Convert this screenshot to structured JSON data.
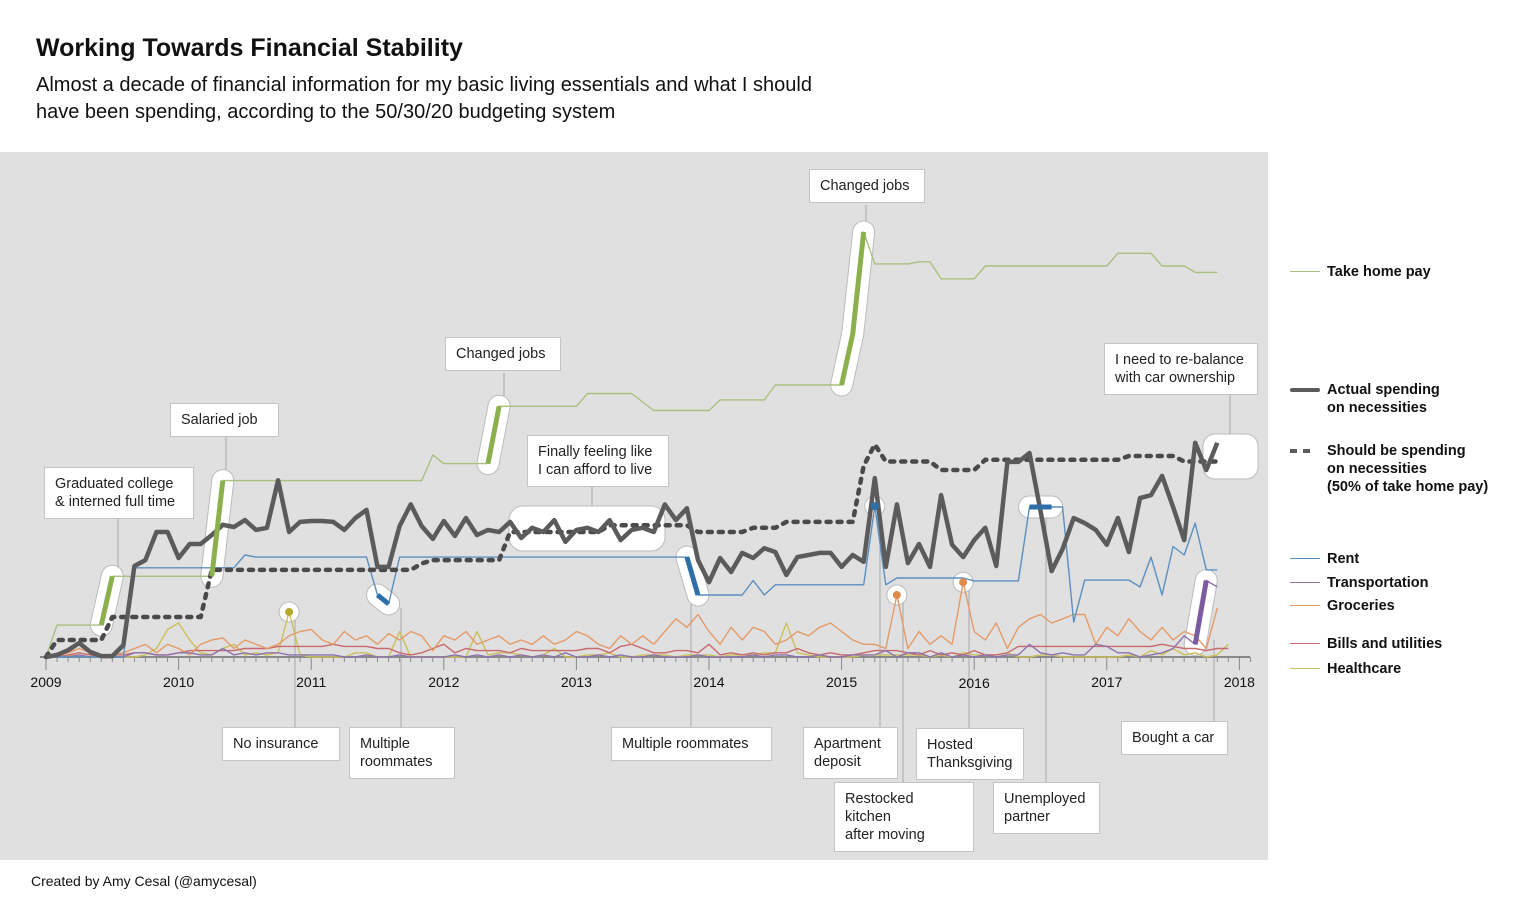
{
  "title": "Working Towards Financial Stability",
  "subtitle": "Almost a decade of financial information for my basic living essentials and what I should have been spending, according to the 50/30/20 budgeting system",
  "footer": "Created by Amy Cesal (@amycesal)",
  "chart_data": {
    "type": "line",
    "x_start": "2009-01",
    "x_interval": "month",
    "x_tick_labels": [
      "2009",
      "2010",
      "2011",
      "2012",
      "2013",
      "2014",
      "2015",
      "2016",
      "2017",
      "2018"
    ],
    "y_axis_shown": false,
    "grid": false,
    "legend_position": "right",
    "series": [
      {
        "name": "Take home pay",
        "color": "#a9c07f",
        "style": "solid-thin",
        "values": [
          0,
          7.5,
          7.5,
          7.5,
          7.5,
          7.5,
          19,
          19,
          19,
          19,
          19,
          19,
          19,
          19,
          19,
          19,
          41.5,
          41.5,
          41.5,
          41.5,
          41.5,
          41.5,
          41.5,
          41.5,
          41.5,
          41.5,
          41.5,
          41.5,
          41.5,
          41.5,
          41.5,
          41.5,
          41.5,
          41.5,
          41.5,
          47.5,
          45.5,
          45.5,
          45.5,
          45.5,
          45.5,
          59,
          59,
          59,
          59,
          59,
          59,
          59,
          59,
          62,
          62,
          62,
          62,
          62,
          60,
          58,
          58,
          58,
          58,
          58,
          58,
          60.5,
          60.5,
          60.5,
          60.5,
          60.5,
          64,
          64,
          64,
          64,
          64,
          64,
          64,
          76,
          100,
          92.5,
          92.5,
          92.5,
          92.5,
          93,
          93,
          89,
          89,
          89,
          89,
          92,
          92,
          92,
          92,
          92,
          92,
          92,
          92,
          92,
          92,
          92,
          92,
          95,
          95,
          95,
          95,
          92,
          92,
          92,
          90.5,
          90.5,
          90.5
        ]
      },
      {
        "name": "Actual spending on necessities",
        "color": "#5b5b5b",
        "style": "solid-thick",
        "values": [
          0,
          0.5,
          1.6,
          3.3,
          1.2,
          0.2,
          0.2,
          2.8,
          21.4,
          22.8,
          29.4,
          29.4,
          23.3,
          26.6,
          26.6,
          28.7,
          31.1,
          30.6,
          32.2,
          29.9,
          30.4,
          41.6,
          29.4,
          31.8,
          32,
          32,
          31.8,
          29.9,
          32.7,
          34.6,
          21.2,
          21.2,
          30.8,
          35.9,
          30.8,
          27.8,
          32,
          28.5,
          32.7,
          28.7,
          29.9,
          29.4,
          31.8,
          28,
          30.4,
          29.4,
          32.2,
          27.1,
          29.9,
          30.4,
          29.4,
          32.2,
          27.5,
          29.9,
          30.4,
          29.4,
          35.9,
          32.2,
          35,
          22.8,
          17.6,
          23.3,
          20,
          24.5,
          23.3,
          25.6,
          24.7,
          19.3,
          23.5,
          24,
          24.5,
          24.5,
          21.2,
          24,
          22.4,
          42.1,
          21.2,
          35.9,
          22.1,
          26.6,
          21.2,
          38.1,
          26.4,
          23.5,
          27.5,
          30.4,
          21.4,
          45.9,
          45.9,
          48,
          34.4,
          20.2,
          25.4,
          32.7,
          31.5,
          29.9,
          26.4,
          32.7,
          24.7,
          37.4,
          38.1,
          42.6,
          35.3,
          27.5,
          50.4,
          44,
          50.4
        ]
      },
      {
        "name": "Should be spending on necessities (50% of take home pay)",
        "color": "#4a4a4a",
        "style": "dotted",
        "values": [
          0,
          4,
          4,
          4,
          4,
          4,
          9.4,
          9.4,
          9.4,
          9.4,
          9.4,
          9.4,
          9.4,
          9.4,
          9.4,
          20.5,
          20.5,
          20.5,
          20.5,
          20.5,
          20.5,
          20.5,
          20.5,
          20.5,
          20.5,
          20.5,
          20.5,
          20.5,
          20.5,
          20.5,
          20.5,
          20.5,
          20.5,
          20.5,
          22,
          22.8,
          22.8,
          22.8,
          22.8,
          22.8,
          22.8,
          22.8,
          29.4,
          29.4,
          29.4,
          29.4,
          29.4,
          29.4,
          29.4,
          29.4,
          29.4,
          31,
          31,
          31,
          31,
          31,
          31,
          31,
          31,
          29.4,
          29.4,
          29.4,
          29.4,
          29.4,
          30.4,
          30.4,
          30.4,
          31.8,
          31.8,
          31.8,
          31.8,
          31.8,
          31.8,
          31.8,
          45,
          50,
          46,
          46,
          46,
          46,
          46,
          44,
          44,
          44,
          44,
          46.4,
          46.4,
          46.4,
          46.4,
          46.4,
          46.4,
          46.4,
          46.4,
          46.4,
          46.4,
          46.4,
          46.4,
          46.4,
          47.3,
          47.3,
          47.3,
          47.3,
          47.3,
          46,
          46,
          46,
          46
        ]
      },
      {
        "name": "Rent",
        "color": "#5b8fbf",
        "style": "solid-thin",
        "values": [
          0,
          0,
          0,
          0,
          0,
          0,
          0,
          0,
          21,
          21,
          21,
          21,
          21,
          21,
          21,
          21,
          21,
          21,
          24,
          23.5,
          23.5,
          23.5,
          23.5,
          23.5,
          23.5,
          23.5,
          23.5,
          23.5,
          23.5,
          23.5,
          14.6,
          12.5,
          23.5,
          23.5,
          23.5,
          23.5,
          23.5,
          23.5,
          23.5,
          23.5,
          23.5,
          23.5,
          23.5,
          23.5,
          23.5,
          23.5,
          23.5,
          23.5,
          23.5,
          23.5,
          23.5,
          23.5,
          23.5,
          23.5,
          23.5,
          23.5,
          23.5,
          23.5,
          23.5,
          14.6,
          14.6,
          14.6,
          14.6,
          14.6,
          18,
          14.6,
          17,
          17,
          17,
          17,
          17,
          17,
          17,
          17,
          17,
          35.5,
          17,
          18.6,
          18.6,
          18.6,
          18.6,
          18.6,
          18.6,
          18.6,
          17.9,
          17.9,
          17.9,
          17.9,
          17.9,
          35.3,
          35.3,
          35.3,
          35.3,
          8.2,
          18.1,
          18.1,
          18.1,
          18.1,
          18.1,
          16.5,
          23.5,
          14.6,
          26,
          24,
          31.5,
          20.5,
          20.5
        ]
      },
      {
        "name": "Transportation",
        "color": "#8e72ad",
        "style": "solid-thin",
        "values": [
          0,
          0,
          0,
          0.5,
          0,
          0,
          0,
          0,
          1,
          1,
          0.5,
          0.5,
          1,
          1,
          0.5,
          0.5,
          2,
          0.5,
          1,
          0.5,
          1,
          1,
          0.5,
          0.5,
          0.5,
          0.5,
          0.5,
          0,
          0,
          0.5,
          0,
          0,
          0.5,
          0,
          0,
          0,
          0,
          0.5,
          0,
          0.5,
          0,
          0.5,
          0,
          0.5,
          0,
          0.5,
          0,
          1,
          0,
          0,
          0.5,
          0,
          0.5,
          0,
          0,
          0.5,
          0,
          0,
          0,
          0.5,
          0,
          0,
          0,
          0,
          0.5,
          0,
          0.5,
          0.5,
          0,
          0,
          0.5,
          0,
          0,
          0.5,
          0.5,
          0.5,
          1.5,
          0,
          1,
          1,
          0,
          1,
          0,
          0.5,
          0,
          0.5,
          0,
          0.5,
          0.5,
          3,
          1,
          0.5,
          1,
          0.5,
          0.5,
          3,
          2.5,
          1,
          1,
          0,
          0.5,
          1,
          2,
          5,
          3,
          18,
          16.5
        ]
      },
      {
        "name": "Groceries",
        "color": "#e39a68",
        "style": "solid-thin",
        "values": [
          0,
          0.5,
          1,
          2,
          1,
          0.5,
          0.5,
          1,
          2,
          3,
          1,
          3,
          2,
          0.5,
          3,
          4,
          4.5,
          2,
          4,
          3,
          2,
          3,
          5,
          6,
          6.5,
          4,
          3,
          6,
          4,
          5,
          3,
          5.5,
          4,
          6,
          5,
          1.5,
          5,
          4,
          6,
          3,
          4,
          5,
          3,
          4,
          3,
          5,
          3,
          4,
          6,
          5,
          3,
          2,
          5,
          3,
          5,
          3,
          6,
          9,
          7,
          10,
          6,
          3,
          7,
          4,
          7,
          6,
          3,
          4,
          6,
          5,
          7,
          8,
          6,
          4,
          3,
          3,
          2,
          14.6,
          2,
          6,
          3,
          5,
          3,
          17.6,
          6,
          4,
          8,
          2,
          7,
          9,
          10,
          8,
          9,
          10,
          10,
          3,
          7,
          5,
          9,
          6,
          4,
          7,
          4,
          6,
          5,
          2,
          11.5
        ]
      },
      {
        "name": "Bills and utilities",
        "color": "#c8696e",
        "style": "solid-thin",
        "values": [
          0,
          0,
          0.5,
          1,
          0.5,
          0,
          0.5,
          0.5,
          1,
          1,
          0.5,
          0.5,
          1,
          1.5,
          1.5,
          1.5,
          1.5,
          1.5,
          2,
          2,
          2,
          2.5,
          2.5,
          2.5,
          2.5,
          2.5,
          3,
          2.5,
          2.5,
          2.5,
          2,
          2,
          1,
          0.5,
          1,
          2,
          3,
          1,
          2,
          1.5,
          1.5,
          1.5,
          1,
          2,
          1.5,
          1.5,
          1.5,
          1.5,
          1.5,
          2,
          2,
          1,
          2.5,
          3,
          2,
          1,
          1,
          1.5,
          1.5,
          1,
          3,
          0.5,
          1,
          0.5,
          1,
          0.5,
          1,
          1,
          2,
          1,
          0.5,
          1,
          0.5,
          0.5,
          1,
          1.5,
          1.5,
          1.5,
          1,
          0.5,
          1.5,
          0.5,
          1,
          0.5,
          1.5,
          0.5,
          0.5,
          1,
          2.5,
          2.5,
          2.5,
          2.5,
          2.5,
          2.5,
          2.5,
          2.5,
          2.5,
          2.5,
          2.5,
          2.5,
          2.5,
          3,
          2.5,
          2,
          2,
          1.5,
          2,
          2
        ]
      },
      {
        "name": "Healthcare",
        "color": "#c9c05a",
        "style": "solid-thin",
        "values": [
          0,
          0.3,
          0.3,
          0.5,
          0,
          0,
          0,
          0,
          0,
          0.5,
          2,
          6.5,
          8,
          4,
          1,
          0.5,
          2,
          3,
          0.5,
          1,
          0.5,
          1,
          10.6,
          0.5,
          0,
          0,
          0,
          0,
          1,
          1,
          0,
          0,
          6,
          0,
          0,
          0,
          0,
          0,
          0,
          6,
          0.5,
          1,
          1,
          0.5,
          0,
          0.5,
          2,
          0,
          0,
          0.5,
          0.5,
          1,
          0,
          0,
          0.5,
          0.5,
          0.5,
          0,
          0.5,
          0.5,
          0.5,
          0,
          0.5,
          0.5,
          0.5,
          1,
          1,
          8,
          1,
          0.5,
          0,
          0,
          0,
          0,
          0.5,
          0.5,
          0.5,
          0.5,
          0.5,
          0.5,
          0,
          0.5,
          0,
          1,
          0.5,
          0.5,
          0.5,
          1,
          0,
          0,
          0.5,
          0.5,
          0,
          0,
          0,
          0,
          0,
          0,
          0.5,
          0,
          1.5,
          0.5,
          2,
          0.5,
          1,
          0,
          0.5,
          3
        ]
      }
    ],
    "highlights": [
      {
        "series": 0,
        "from": 5,
        "to": 6,
        "color": "#8db04f"
      },
      {
        "series": 0,
        "from": 15,
        "to": 16,
        "color": "#8db04f"
      },
      {
        "series": 0,
        "from": 40,
        "to": 41,
        "color": "#8db04f"
      },
      {
        "series": 0,
        "from": 72,
        "to": 74,
        "color": "#8db04f"
      },
      {
        "series": 3,
        "from": 30,
        "to": 31,
        "color": "#2e6fa8"
      },
      {
        "series": 3,
        "from": 58,
        "to": 59,
        "color": "#2e6fa8"
      },
      {
        "series": 3,
        "from": 89,
        "to": 91,
        "color": "#2e6fa8"
      },
      {
        "series": 4,
        "from": 104,
        "to": 105,
        "color": "#7b5aa0"
      }
    ],
    "point_highlights": [
      {
        "series": 7,
        "month": 22,
        "color": "#b5ab2a"
      },
      {
        "series": 3,
        "month": 75,
        "color": "#2e6fa8"
      },
      {
        "series": 5,
        "month": 77,
        "color": "#e08a4c"
      },
      {
        "series": 5,
        "month": 83,
        "color": "#e08a4c"
      }
    ],
    "annotations": [
      {
        "text": "Graduated college\n& interned full time"
      },
      {
        "text": "Salaried job"
      },
      {
        "text": "Changed jobs"
      },
      {
        "text": "Finally feeling like\nI can afford to live"
      },
      {
        "text": "Changed jobs"
      },
      {
        "text": "I need to re-balance\nwith car ownership"
      },
      {
        "text": "No insurance"
      },
      {
        "text": "Multiple\nroommates"
      },
      {
        "text": "Multiple roommates"
      },
      {
        "text": "Apartment\ndeposit"
      },
      {
        "text": "Restocked kitchen\nafter moving"
      },
      {
        "text": "Hosted\nThanksgiving"
      },
      {
        "text": "Unemployed\npartner"
      },
      {
        "text": "Bought a car"
      }
    ]
  },
  "legend": [
    {
      "label": "Take home pay",
      "color": "#a9c07f",
      "style": "thin"
    },
    {
      "label": "Actual spending\non necessities",
      "color": "#5b5b5b",
      "style": "thick"
    },
    {
      "label": "Should be spending\non necessities\n(50% of take home pay)",
      "color": "#5b5b5b",
      "style": "dotted"
    },
    {
      "label": "Rent",
      "color": "#5b8fbf",
      "style": "thin"
    },
    {
      "label": "Transportation",
      "color": "#8e72ad",
      "style": "thin"
    },
    {
      "label": "Groceries",
      "color": "#e39a68",
      "style": "thin"
    },
    {
      "label": "Bills and utilities",
      "color": "#c8696e",
      "style": "thin"
    },
    {
      "label": "Healthcare",
      "color": "#c9c05a",
      "style": "thin"
    }
  ]
}
